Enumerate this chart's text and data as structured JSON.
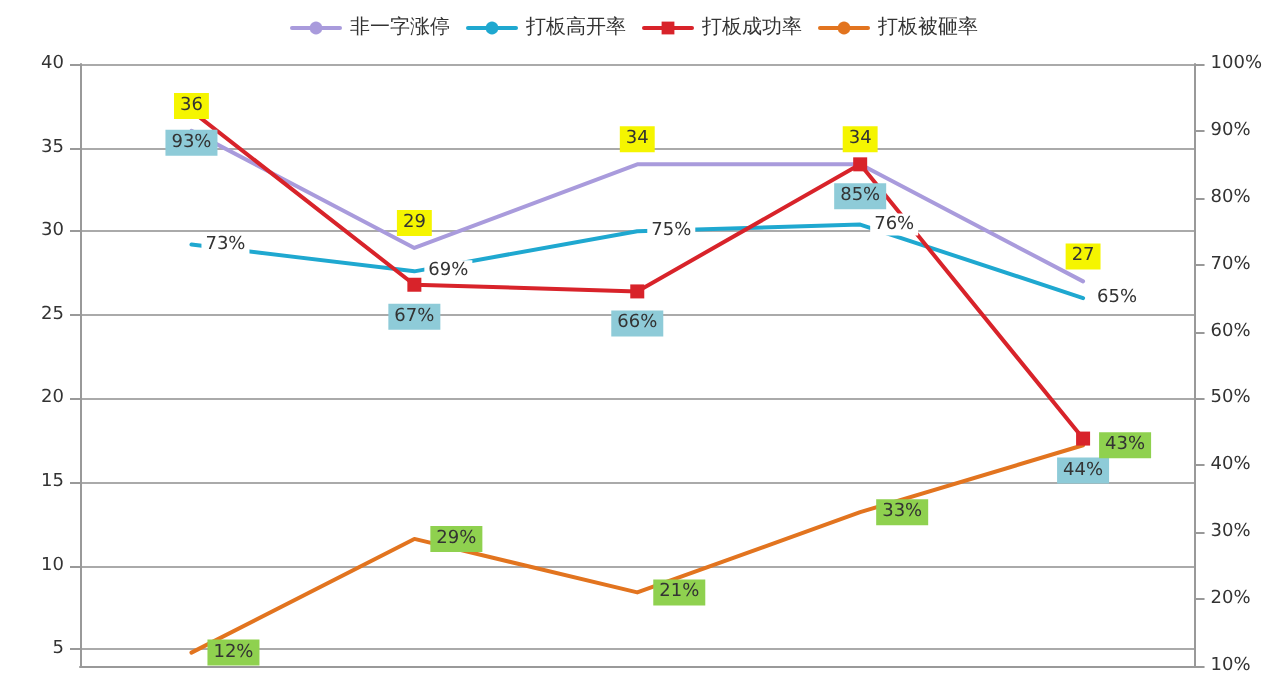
{
  "chart_data": {
    "type": "line",
    "categories": [
      null,
      null,
      null,
      null,
      null
    ],
    "series": [
      {
        "name": "非一字涨停",
        "color": "#a99bdc",
        "values": [
          36,
          29,
          34,
          34,
          27
        ],
        "value_labels": [
          "36",
          "29",
          "34",
          "34",
          "27"
        ],
        "marker": "none"
      },
      {
        "name": "打板高开率",
        "color": "#1fa8d0",
        "axis": "y2",
        "values": [
          73,
          69,
          75,
          76,
          65
        ],
        "value_labels": [
          "73%",
          "69%",
          "75%",
          "76%",
          "65%"
        ],
        "marker": "none"
      },
      {
        "name": "打板成功率",
        "color": "#d8232a",
        "axis": "y2",
        "values": [
          93,
          67,
          66,
          85,
          44
        ],
        "value_labels": [
          "93%",
          "67%",
          "66%",
          "85%",
          "44%"
        ],
        "marker": "square"
      },
      {
        "name": "打板被砸率",
        "color": "#e2741f",
        "axis": "y2",
        "values": [
          12,
          29,
          21,
          33,
          43
        ],
        "value_labels": [
          "12%",
          "29%",
          "21%",
          "33%",
          "43%"
        ],
        "marker": "none"
      }
    ],
    "ylim": [
      4,
      40
    ],
    "yticks": [
      5,
      10,
      15,
      20,
      25,
      30,
      35,
      40
    ],
    "y2lim": [
      10,
      100
    ],
    "y2ticks": [
      {
        "value": 10,
        "label": "10%"
      },
      {
        "value": 20,
        "label": "20%"
      },
      {
        "value": 30,
        "label": "30%"
      },
      {
        "value": 40,
        "label": "40%"
      },
      {
        "value": 50,
        "label": "50%"
      },
      {
        "value": 60,
        "label": "60%"
      },
      {
        "value": 70,
        "label": "70%"
      },
      {
        "value": 80,
        "label": "80%"
      },
      {
        "value": 90,
        "label": "90%"
      },
      {
        "value": 100,
        "label": "100%"
      }
    ],
    "grid": "y",
    "legend": "top",
    "line_style": "solid"
  }
}
